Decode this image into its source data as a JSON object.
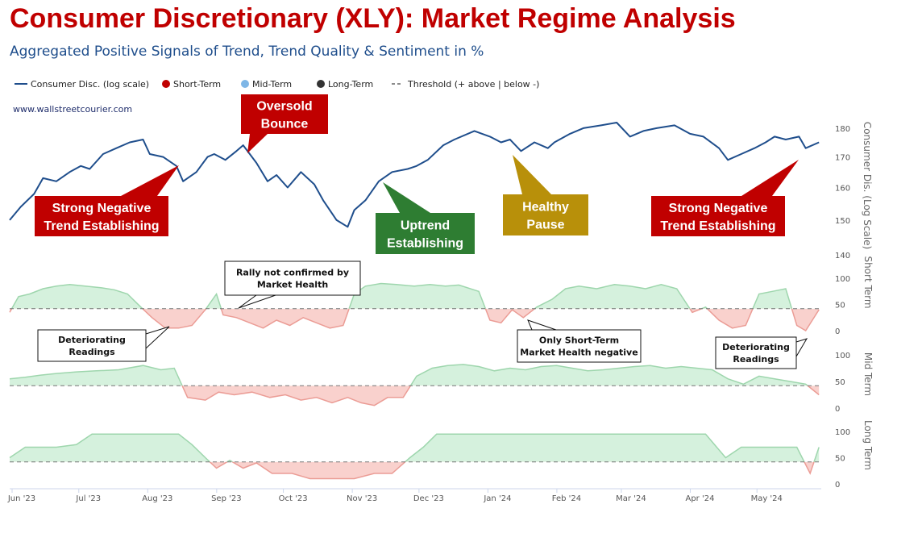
{
  "title": "Consumer Discretionary (XLY): Market Regime Analysis",
  "subtitle": "Aggregated Positive Signals of Trend, Trend Quality & Sentiment in %",
  "watermark": "www.wallstreetcourier.com",
  "legend": [
    {
      "label": "Consumer Disc. (log scale)",
      "symbol": "line",
      "color": "#1f4e8c"
    },
    {
      "label": "Short-Term",
      "symbol": "dot",
      "color": "#c00000"
    },
    {
      "label": "Mid-Term",
      "symbol": "dot",
      "color": "#7eb6e6"
    },
    {
      "label": "Long-Term",
      "symbol": "dot",
      "color": "#333333"
    },
    {
      "label": "Threshold (+ above | below -)",
      "symbol": "dash",
      "color": "#666666"
    }
  ],
  "colors": {
    "price": "#1f4e8c",
    "pos_fill": "#d5f1dd",
    "pos_line": "#9ed6ad",
    "neg_fill": "#f9d1cd",
    "neg_line": "#eb9c95",
    "threshold": "#777777"
  },
  "annotations": [
    {
      "id": "oversold-bounce",
      "lines": [
        "Oversold",
        "Bounce"
      ],
      "color": "#c00000"
    },
    {
      "id": "strong-negative-1",
      "lines": [
        "Strong Negative",
        "Trend Establishing"
      ],
      "color": "#c00000"
    },
    {
      "id": "uptrend",
      "lines": [
        "Uptrend",
        "Establishing"
      ],
      "color": "#2e7d32"
    },
    {
      "id": "healthy-pause",
      "lines": [
        "Healthy",
        "Pause"
      ],
      "color": "#b8900a"
    },
    {
      "id": "strong-negative-2",
      "lines": [
        "Strong Negative",
        "Trend Establishing"
      ],
      "color": "#c00000"
    },
    {
      "id": "rally-not-confirmed",
      "lines": [
        "Rally not confirmed by",
        "Market Health"
      ]
    },
    {
      "id": "deteriorating-1",
      "lines": [
        "Deteriorating",
        "Readings"
      ]
    },
    {
      "id": "only-short-term",
      "lines": [
        "Only Short-Term",
        "Market Health negative"
      ]
    },
    {
      "id": "deteriorating-2",
      "lines": [
        "Deteriorating",
        "Readings"
      ]
    }
  ],
  "chart_data": {
    "type": "line",
    "x_ticks": [
      "Jun '23",
      "Jul '23",
      "Aug '23",
      "Sep '23",
      "Oct '23",
      "Nov '23",
      "Dec '23",
      "Jan '24",
      "Feb '24",
      "Mar '24",
      "Apr '24",
      "May '24"
    ],
    "price_axis": {
      "label": "Consumer Dis. (Log Scale)",
      "ticks": [
        140,
        150,
        160,
        170,
        180
      ],
      "ylim": [
        140,
        182
      ],
      "scale": "log"
    },
    "price": [
      [
        "2023-06-01",
        150
      ],
      [
        "2023-06-06",
        154
      ],
      [
        "2023-06-12",
        158
      ],
      [
        "2023-06-16",
        163
      ],
      [
        "2023-06-22",
        162
      ],
      [
        "2023-06-28",
        165
      ],
      [
        "2023-07-03",
        167
      ],
      [
        "2023-07-07",
        166
      ],
      [
        "2023-07-13",
        171
      ],
      [
        "2023-07-19",
        173
      ],
      [
        "2023-07-25",
        175
      ],
      [
        "2023-07-31",
        176
      ],
      [
        "2023-08-03",
        171
      ],
      [
        "2023-08-09",
        170
      ],
      [
        "2023-08-15",
        167
      ],
      [
        "2023-08-18",
        162
      ],
      [
        "2023-08-24",
        165
      ],
      [
        "2023-08-29",
        170
      ],
      [
        "2023-09-01",
        171
      ],
      [
        "2023-09-06",
        169
      ],
      [
        "2023-09-11",
        172
      ],
      [
        "2023-09-14",
        174
      ],
      [
        "2023-09-20",
        168
      ],
      [
        "2023-09-25",
        162
      ],
      [
        "2023-09-29",
        164
      ],
      [
        "2023-10-04",
        160
      ],
      [
        "2023-10-10",
        165
      ],
      [
        "2023-10-16",
        161
      ],
      [
        "2023-10-20",
        156
      ],
      [
        "2023-10-26",
        150
      ],
      [
        "2023-10-31",
        148
      ],
      [
        "2023-11-03",
        153
      ],
      [
        "2023-11-08",
        156
      ],
      [
        "2023-11-14",
        162
      ],
      [
        "2023-11-20",
        165
      ],
      [
        "2023-11-27",
        166
      ],
      [
        "2023-12-01",
        167
      ],
      [
        "2023-12-06",
        169
      ],
      [
        "2023-12-13",
        174
      ],
      [
        "2023-12-18",
        176
      ],
      [
        "2023-12-27",
        179
      ],
      [
        "2024-01-03",
        177
      ],
      [
        "2024-01-08",
        175
      ],
      [
        "2024-01-12",
        176
      ],
      [
        "2024-01-17",
        172
      ],
      [
        "2024-01-23",
        175
      ],
      [
        "2024-01-29",
        173
      ],
      [
        "2024-02-01",
        175
      ],
      [
        "2024-02-08",
        178
      ],
      [
        "2024-02-14",
        180
      ],
      [
        "2024-02-22",
        181
      ],
      [
        "2024-02-29",
        182
      ],
      [
        "2024-03-06",
        177
      ],
      [
        "2024-03-12",
        179
      ],
      [
        "2024-03-18",
        180
      ],
      [
        "2024-03-26",
        181
      ],
      [
        "2024-04-02",
        178
      ],
      [
        "2024-04-08",
        177
      ],
      [
        "2024-04-15",
        173
      ],
      [
        "2024-04-19",
        169
      ],
      [
        "2024-04-25",
        171
      ],
      [
        "2024-05-01",
        173
      ],
      [
        "2024-05-06",
        175
      ],
      [
        "2024-05-10",
        177
      ],
      [
        "2024-05-15",
        176
      ],
      [
        "2024-05-21",
        177
      ],
      [
        "2024-05-24",
        173
      ],
      [
        "2024-05-30",
        175
      ]
    ],
    "threshold": 42,
    "panels": [
      {
        "name": "Short Term",
        "ticks": [
          0,
          50,
          100
        ],
        "values": [
          [
            "2023-06-01",
            35
          ],
          [
            "2023-06-05",
            65
          ],
          [
            "2023-06-10",
            70
          ],
          [
            "2023-06-16",
            80
          ],
          [
            "2023-06-22",
            85
          ],
          [
            "2023-06-28",
            88
          ],
          [
            "2023-07-05",
            85
          ],
          [
            "2023-07-12",
            82
          ],
          [
            "2023-07-18",
            78
          ],
          [
            "2023-07-24",
            70
          ],
          [
            "2023-07-30",
            45
          ],
          [
            "2023-08-04",
            25
          ],
          [
            "2023-08-10",
            5
          ],
          [
            "2023-08-16",
            5
          ],
          [
            "2023-08-22",
            10
          ],
          [
            "2023-08-28",
            40
          ],
          [
            "2023-09-02",
            70
          ],
          [
            "2023-09-05",
            30
          ],
          [
            "2023-09-11",
            25
          ],
          [
            "2023-09-17",
            15
          ],
          [
            "2023-09-23",
            5
          ],
          [
            "2023-09-29",
            20
          ],
          [
            "2023-10-05",
            10
          ],
          [
            "2023-10-11",
            25
          ],
          [
            "2023-10-17",
            15
          ],
          [
            "2023-10-23",
            5
          ],
          [
            "2023-10-29",
            10
          ],
          [
            "2023-11-03",
            70
          ],
          [
            "2023-11-08",
            85
          ],
          [
            "2023-11-15",
            90
          ],
          [
            "2023-11-22",
            88
          ],
          [
            "2023-11-30",
            85
          ],
          [
            "2023-12-07",
            88
          ],
          [
            "2023-12-14",
            85
          ],
          [
            "2023-12-20",
            87
          ],
          [
            "2023-12-29",
            75
          ],
          [
            "2024-01-03",
            20
          ],
          [
            "2024-01-08",
            15
          ],
          [
            "2024-01-13",
            40
          ],
          [
            "2024-01-18",
            25
          ],
          [
            "2024-01-24",
            45
          ],
          [
            "2024-01-31",
            60
          ],
          [
            "2024-02-06",
            80
          ],
          [
            "2024-02-12",
            85
          ],
          [
            "2024-02-20",
            80
          ],
          [
            "2024-02-28",
            88
          ],
          [
            "2024-03-06",
            85
          ],
          [
            "2024-03-13",
            80
          ],
          [
            "2024-03-20",
            88
          ],
          [
            "2024-03-27",
            80
          ],
          [
            "2024-04-03",
            35
          ],
          [
            "2024-04-09",
            45
          ],
          [
            "2024-04-15",
            20
          ],
          [
            "2024-04-21",
            5
          ],
          [
            "2024-04-27",
            10
          ],
          [
            "2024-05-03",
            70
          ],
          [
            "2024-05-09",
            75
          ],
          [
            "2024-05-15",
            80
          ],
          [
            "2024-05-20",
            10
          ],
          [
            "2024-05-24",
            0
          ],
          [
            "2024-05-30",
            40
          ]
        ]
      },
      {
        "name": "Mid Term",
        "ticks": [
          0,
          50,
          100
        ],
        "values": [
          [
            "2023-06-01",
            55
          ],
          [
            "2023-06-08",
            58
          ],
          [
            "2023-06-15",
            62
          ],
          [
            "2023-06-22",
            65
          ],
          [
            "2023-07-01",
            68
          ],
          [
            "2023-07-10",
            70
          ],
          [
            "2023-07-20",
            72
          ],
          [
            "2023-07-31",
            80
          ],
          [
            "2023-08-08",
            72
          ],
          [
            "2023-08-14",
            75
          ],
          [
            "2023-08-20",
            20
          ],
          [
            "2023-08-28",
            15
          ],
          [
            "2023-09-03",
            30
          ],
          [
            "2023-09-10",
            25
          ],
          [
            "2023-09-18",
            30
          ],
          [
            "2023-09-26",
            20
          ],
          [
            "2023-10-03",
            25
          ],
          [
            "2023-10-10",
            15
          ],
          [
            "2023-10-17",
            20
          ],
          [
            "2023-10-24",
            10
          ],
          [
            "2023-10-31",
            20
          ],
          [
            "2023-11-06",
            10
          ],
          [
            "2023-11-12",
            5
          ],
          [
            "2023-11-18",
            20
          ],
          [
            "2023-11-25",
            20
          ],
          [
            "2023-12-01",
            60
          ],
          [
            "2023-12-08",
            75
          ],
          [
            "2023-12-15",
            80
          ],
          [
            "2023-12-22",
            82
          ],
          [
            "2023-12-29",
            78
          ],
          [
            "2024-01-05",
            70
          ],
          [
            "2024-01-12",
            75
          ],
          [
            "2024-01-19",
            72
          ],
          [
            "2024-01-26",
            78
          ],
          [
            "2024-02-02",
            80
          ],
          [
            "2024-02-09",
            75
          ],
          [
            "2024-02-16",
            70
          ],
          [
            "2024-02-23",
            72
          ],
          [
            "2024-03-01",
            75
          ],
          [
            "2024-03-08",
            78
          ],
          [
            "2024-03-15",
            80
          ],
          [
            "2024-03-22",
            75
          ],
          [
            "2024-03-29",
            78
          ],
          [
            "2024-04-05",
            75
          ],
          [
            "2024-04-12",
            72
          ],
          [
            "2024-04-19",
            55
          ],
          [
            "2024-04-26",
            45
          ],
          [
            "2024-05-03",
            60
          ],
          [
            "2024-05-10",
            55
          ],
          [
            "2024-05-17",
            50
          ],
          [
            "2024-05-24",
            45
          ],
          [
            "2024-05-30",
            25
          ]
        ]
      },
      {
        "name": "Long Term",
        "ticks": [
          0,
          50,
          100
        ],
        "values": [
          [
            "2023-06-01",
            50
          ],
          [
            "2023-06-08",
            70
          ],
          [
            "2023-06-15",
            70
          ],
          [
            "2023-06-22",
            70
          ],
          [
            "2023-07-01",
            75
          ],
          [
            "2023-07-08",
            95
          ],
          [
            "2023-07-15",
            95
          ],
          [
            "2023-07-22",
            95
          ],
          [
            "2023-07-31",
            95
          ],
          [
            "2023-08-08",
            95
          ],
          [
            "2023-08-16",
            95
          ],
          [
            "2023-08-22",
            75
          ],
          [
            "2023-08-28",
            50
          ],
          [
            "2023-09-02",
            30
          ],
          [
            "2023-09-08",
            45
          ],
          [
            "2023-09-14",
            30
          ],
          [
            "2023-09-20",
            40
          ],
          [
            "2023-09-27",
            20
          ],
          [
            "2023-10-06",
            20
          ],
          [
            "2023-10-14",
            10
          ],
          [
            "2023-10-24",
            10
          ],
          [
            "2023-11-03",
            10
          ],
          [
            "2023-11-12",
            20
          ],
          [
            "2023-11-20",
            20
          ],
          [
            "2023-11-28",
            50
          ],
          [
            "2023-12-04",
            70
          ],
          [
            "2023-12-10",
            95
          ],
          [
            "2023-12-18",
            95
          ],
          [
            "2023-12-28",
            95
          ],
          [
            "2024-01-10",
            95
          ],
          [
            "2024-01-22",
            95
          ],
          [
            "2024-02-05",
            95
          ],
          [
            "2024-02-18",
            95
          ],
          [
            "2024-03-01",
            95
          ],
          [
            "2024-03-15",
            95
          ],
          [
            "2024-03-29",
            95
          ],
          [
            "2024-04-09",
            95
          ],
          [
            "2024-04-18",
            50
          ],
          [
            "2024-04-25",
            70
          ],
          [
            "2024-05-03",
            70
          ],
          [
            "2024-05-12",
            70
          ],
          [
            "2024-05-20",
            70
          ],
          [
            "2024-05-26",
            20
          ],
          [
            "2024-05-30",
            70
          ]
        ]
      }
    ]
  }
}
